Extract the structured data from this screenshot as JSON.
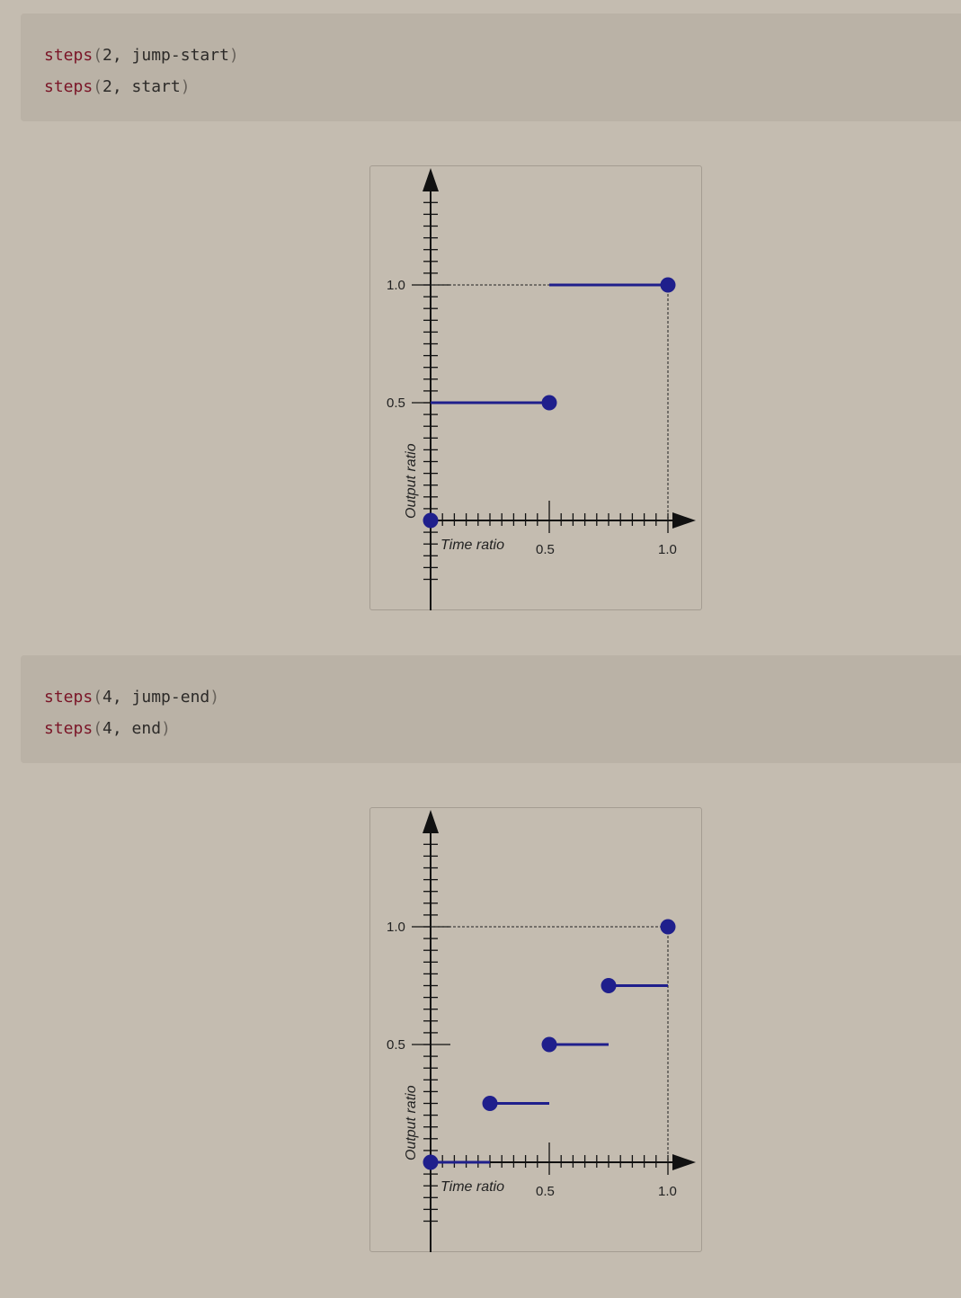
{
  "blocks": [
    {
      "code": [
        {
          "fn": "steps",
          "args": "2, jump-start"
        },
        {
          "fn": "steps",
          "args": "2, start"
        }
      ]
    },
    {
      "code": [
        {
          "fn": "steps",
          "args": "4, jump-end"
        },
        {
          "fn": "steps",
          "args": "4, end"
        }
      ]
    }
  ],
  "charts": [
    {
      "xlabel": "Time ratio",
      "ylabel": "Output ratio",
      "x_ticks": [
        "0.5",
        "1.0"
      ],
      "y_ticks": [
        "0.5",
        "1.0"
      ]
    },
    {
      "xlabel": "Time ratio",
      "ylabel": "Output ratio",
      "x_ticks": [
        "0.5",
        "1.0"
      ],
      "y_ticks": [
        "0.5",
        "1.0"
      ]
    }
  ],
  "chart_data": [
    {
      "type": "line",
      "title": "",
      "xlabel": "Time ratio",
      "ylabel": "Output ratio",
      "xlim": [
        0,
        1
      ],
      "ylim": [
        0,
        1
      ],
      "segments": [
        {
          "x0": 0,
          "x1": 0.5,
          "y": 0.5
        },
        {
          "x0": 0.5,
          "x1": 1.0,
          "y": 1.0
        }
      ],
      "points": [
        {
          "x": 0,
          "y": 0
        },
        {
          "x": 0.5,
          "y": 0.5
        },
        {
          "x": 1.0,
          "y": 1.0
        }
      ],
      "color": "#1f1f8c"
    },
    {
      "type": "line",
      "title": "",
      "xlabel": "Time ratio",
      "ylabel": "Output ratio",
      "xlim": [
        0,
        1
      ],
      "ylim": [
        0,
        1
      ],
      "segments": [
        {
          "x0": 0,
          "x1": 0.25,
          "y": 0
        },
        {
          "x0": 0.25,
          "x1": 0.5,
          "y": 0.25
        },
        {
          "x0": 0.5,
          "x1": 0.75,
          "y": 0.5
        },
        {
          "x0": 0.75,
          "x1": 1.0,
          "y": 0.75
        }
      ],
      "points": [
        {
          "x": 0,
          "y": 0
        },
        {
          "x": 0.25,
          "y": 0.25
        },
        {
          "x": 0.5,
          "y": 0.5
        },
        {
          "x": 0.75,
          "y": 0.75
        },
        {
          "x": 1.0,
          "y": 1.0
        }
      ],
      "color": "#1f1f8c"
    }
  ]
}
